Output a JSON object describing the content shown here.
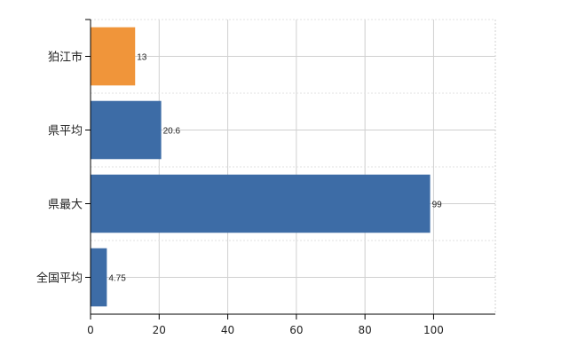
{
  "chart_data": {
    "type": "bar",
    "orientation": "horizontal",
    "categories": [
      "狛江市",
      "県平均",
      "県最大",
      "全国平均"
    ],
    "values": [
      13,
      20.6,
      99,
      4.75
    ],
    "data_labels": [
      "13",
      "20.6",
      "99",
      "4.75"
    ],
    "bar_colors": [
      "#f0953a",
      "#3d6ca6",
      "#3d6ca6",
      "#3d6ca6"
    ],
    "title": "",
    "xlabel": "",
    "ylabel": "",
    "xlim": [
      0,
      118
    ],
    "xticks": [
      0,
      20,
      40,
      60,
      80,
      100
    ],
    "xtick_labels": [
      "0",
      "20",
      "40",
      "60",
      "80",
      "100"
    ],
    "grid": true,
    "legend": "none"
  }
}
